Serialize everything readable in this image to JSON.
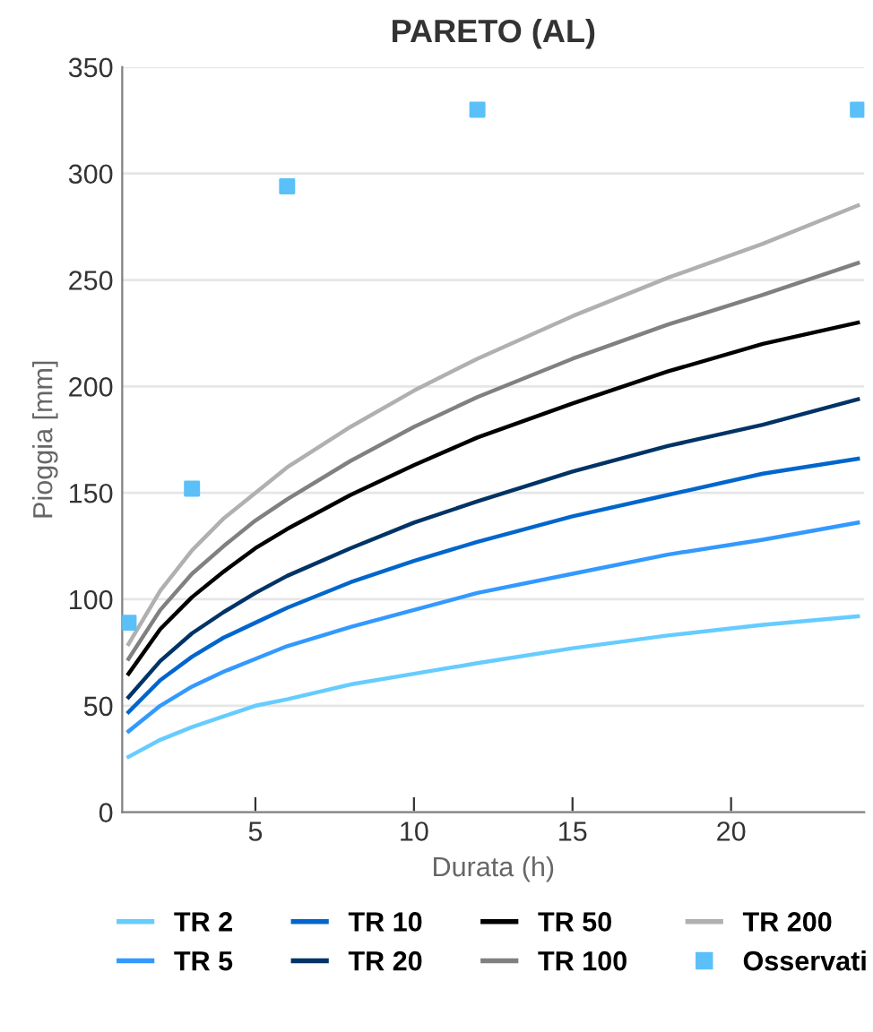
{
  "chart_data": {
    "type": "line",
    "title": "PARETO (AL)",
    "xlabel": "Durata (h)",
    "ylabel": "Pioggia [mm]",
    "xlim": [
      0.8,
      24.2
    ],
    "xticks": [
      5,
      10,
      15,
      20
    ],
    "ylim": [
      0,
      350
    ],
    "yticks": [
      0,
      50,
      100,
      150,
      200,
      250,
      300,
      350
    ],
    "grid": "y",
    "legend": "bottom",
    "marker": "none",
    "line_style": "solid",
    "x": [
      1,
      2,
      3,
      4,
      5,
      6,
      8,
      10,
      12,
      15,
      18,
      21,
      24
    ],
    "series": [
      {
        "name": "TR 2",
        "color": "#66ccff",
        "values": [
          26,
          34,
          40,
          45,
          50,
          53,
          60,
          65,
          70,
          77,
          83,
          88,
          92
        ]
      },
      {
        "name": "TR 5",
        "color": "#3399ff",
        "values": [
          38,
          50,
          59,
          66,
          72,
          78,
          87,
          95,
          103,
          112,
          121,
          128,
          136
        ]
      },
      {
        "name": "TR 10",
        "color": "#0066cc",
        "values": [
          47,
          62,
          73,
          82,
          89,
          96,
          108,
          118,
          127,
          139,
          149,
          159,
          166
        ]
      },
      {
        "name": "TR 20",
        "color": "#003366",
        "values": [
          54,
          71,
          84,
          94,
          103,
          111,
          124,
          136,
          146,
          160,
          172,
          182,
          194
        ]
      },
      {
        "name": "TR 50",
        "color": "#000000",
        "values": [
          65,
          86,
          101,
          113,
          124,
          133,
          149,
          163,
          176,
          192,
          207,
          220,
          230
        ]
      },
      {
        "name": "TR 100",
        "color": "#808080",
        "values": [
          72,
          95,
          112,
          125,
          137,
          147,
          165,
          181,
          195,
          213,
          229,
          243,
          258
        ]
      },
      {
        "name": "TR 200",
        "color": "#b0b0b0",
        "values": [
          79,
          104,
          123,
          138,
          150,
          162,
          181,
          198,
          213,
          233,
          251,
          267,
          285
        ]
      },
      {
        "name": "Osservati",
        "type": "scatter",
        "marker": "square",
        "color": "#5bc0f8",
        "x": [
          1,
          3,
          6,
          12,
          24
        ],
        "values": [
          89,
          152,
          294,
          330,
          330
        ]
      }
    ]
  }
}
